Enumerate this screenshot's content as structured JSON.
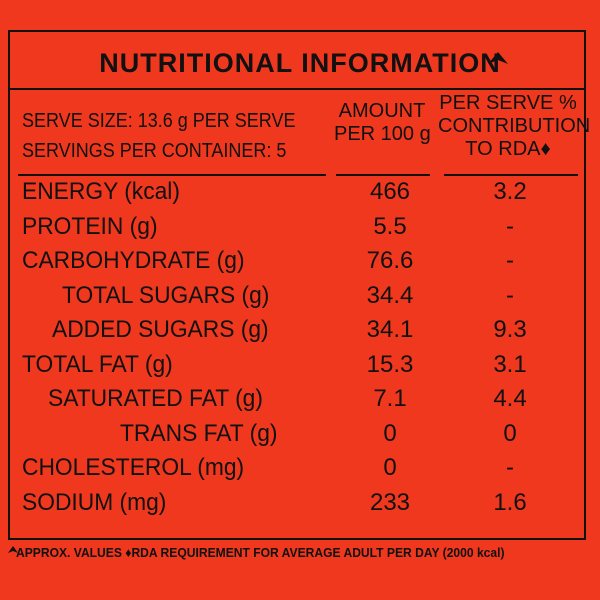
{
  "header": {
    "title": "NUTRITIONAL INFORMATION",
    "serve_size": "SERVE SIZE: 13.6 g PER SERVE",
    "servings": "SERVINGS PER CONTAINER: 5",
    "col_amount": [
      "AMOUNT",
      "PER 100 g"
    ],
    "col_rda": [
      "PER SERVE %",
      "CONTRIBUTION",
      "TO RDA♦"
    ]
  },
  "table": {
    "rows": [
      [
        "ENERGY (kcal)",
        466,
        3.2
      ],
      [
        "PROTEIN (g)",
        5.5,
        "-"
      ],
      [
        "CARBOHYDRATE (g)",
        76.6,
        "-"
      ],
      [
        "TOTAL SUGARS (g)",
        34.4,
        "-"
      ],
      [
        "ADDED SUGARS (g)",
        34.1,
        9.3
      ],
      [
        "TOTAL FAT (g)",
        15.3,
        3.1
      ],
      [
        "SATURATED FAT (g)",
        7.1,
        4.4
      ],
      [
        "TRANS FAT (g)",
        0,
        0
      ],
      [
        "CHOLESTEROL (mg)",
        0,
        "-"
      ],
      [
        "SODIUM (mg)",
        233,
        1.6
      ]
    ]
  },
  "footer": "APPROX. VALUES ♦RDA REQUIREMENT FOR AVERAGE ADULT PER DAY (2000 kcal)"
}
